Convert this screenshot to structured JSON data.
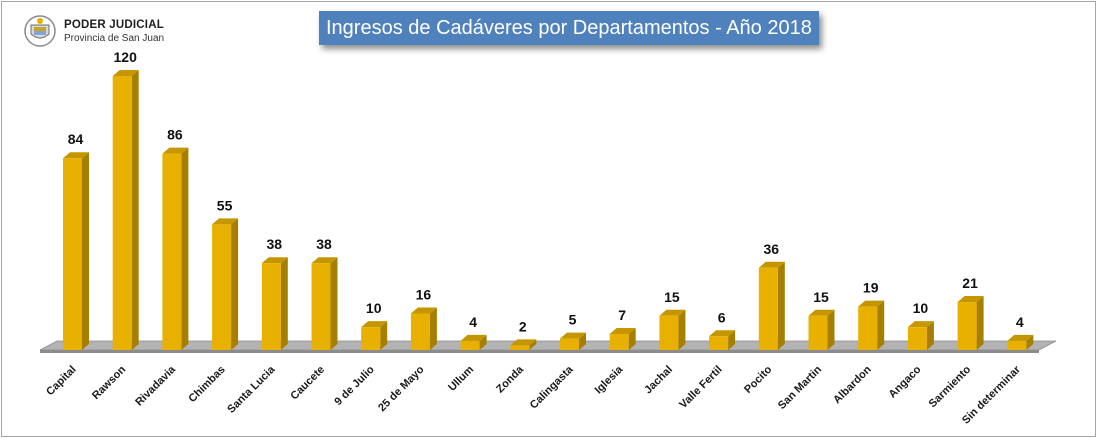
{
  "logo": {
    "org": "PODER JUDICIAL",
    "sub": "Provincia de San Juan",
    "icon": "court-seal-icon"
  },
  "chart_data": {
    "type": "bar",
    "title": "Ingresos de Cadáveres por Departamentos - Año 2018",
    "xlabel": "",
    "ylabel": "",
    "ylim": [
      0,
      120
    ],
    "grid": false,
    "legend": "none",
    "bar_color": "#e8b000",
    "title_bg": "#4f81bd",
    "categories": [
      "Capital",
      "Rawson",
      "Rivadavia",
      "Chimbas",
      "Santa Lucia",
      "Caucete",
      "9 de Julio",
      "25 de Mayo",
      "Ullum",
      "Zonda",
      "Calingasta",
      "Iglesia",
      "Jachal",
      "Valle Fertil",
      "Pocito",
      "San Martin",
      "Albardon",
      "Angaco",
      "Sarmiento",
      "Sin determinar"
    ],
    "values": [
      84,
      120,
      86,
      55,
      38,
      38,
      10,
      16,
      4,
      2,
      5,
      7,
      15,
      6,
      36,
      15,
      19,
      10,
      21,
      4
    ]
  }
}
